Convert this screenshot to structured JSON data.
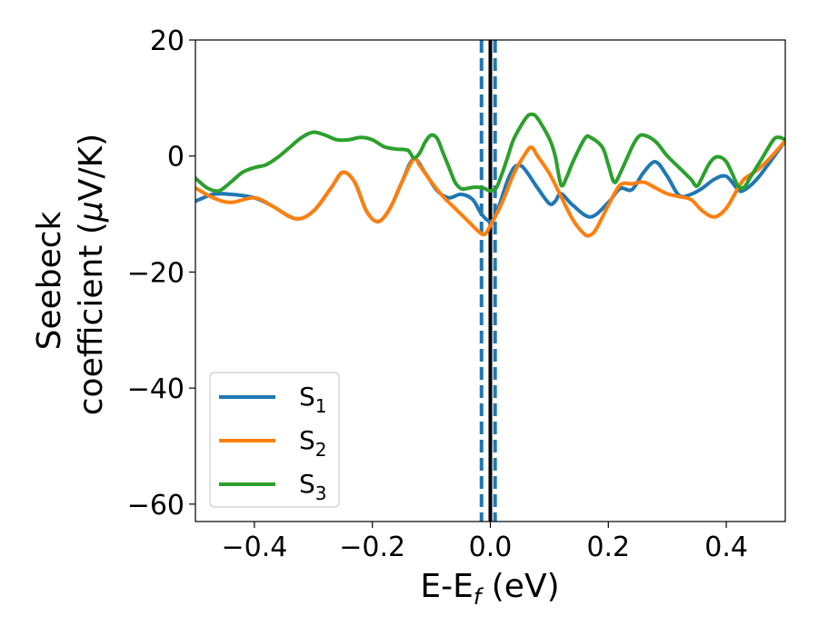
{
  "chart_data": {
    "type": "line",
    "title": "",
    "xlabel": "E-E",
    "xlabel_sub": "f",
    "xlabel_unit": " (eV)",
    "ylabel_line1": "Seebeck",
    "ylabel_line2": "coefficient  (",
    "ylabel_mu": "μ",
    "ylabel_unit": "V/K)",
    "xlim": [
      -0.5,
      0.5
    ],
    "ylim": [
      -63,
      20
    ],
    "xticks": [
      -0.4,
      -0.2,
      0.0,
      0.2,
      0.4
    ],
    "xtick_labels": [
      "−0.4",
      "−0.2",
      "0.0",
      "0.2",
      "0.4"
    ],
    "yticks": [
      20,
      0,
      -20,
      -40,
      -60
    ],
    "ytick_labels": [
      "20",
      "0",
      "−20",
      "−40",
      "−60"
    ],
    "legend_position": "lower-left",
    "vlines": [
      {
        "x": -0.015,
        "style": "dashed",
        "color": "#1f77b4"
      },
      {
        "x": 0.008,
        "style": "dashed",
        "color": "#1f77b4"
      },
      {
        "x": 0.0,
        "style": "solid",
        "color": "#000000"
      }
    ],
    "series": [
      {
        "name": "S",
        "sub": "1",
        "color": "#1f77b4",
        "points": [
          [
            -0.5,
            -7.8
          ],
          [
            -0.47,
            -6.6
          ],
          [
            -0.44,
            -6.6
          ],
          [
            -0.4,
            -7.2
          ],
          [
            -0.37,
            -8.6
          ],
          [
            -0.33,
            -10.8
          ],
          [
            -0.3,
            -9.5
          ],
          [
            -0.27,
            -5.5
          ],
          [
            -0.25,
            -2.8
          ],
          [
            -0.23,
            -4.5
          ],
          [
            -0.21,
            -9.5
          ],
          [
            -0.19,
            -11.3
          ],
          [
            -0.17,
            -9
          ],
          [
            -0.15,
            -4.5
          ],
          [
            -0.13,
            -0.5
          ],
          [
            -0.11,
            -3
          ],
          [
            -0.09,
            -6
          ],
          [
            -0.07,
            -7.2
          ],
          [
            -0.05,
            -6.6
          ],
          [
            -0.03,
            -7.5
          ],
          [
            -0.015,
            -10
          ],
          [
            0.0,
            -11.3
          ],
          [
            0.01,
            -10
          ],
          [
            0.02,
            -7
          ],
          [
            0.03,
            -4
          ],
          [
            0.04,
            -2
          ],
          [
            0.05,
            -1.6
          ],
          [
            0.06,
            -2.5
          ],
          [
            0.08,
            -5.5
          ],
          [
            0.1,
            -8.2
          ],
          [
            0.11,
            -7.8
          ],
          [
            0.12,
            -6.5
          ],
          [
            0.14,
            -8.5
          ],
          [
            0.17,
            -10.5
          ],
          [
            0.2,
            -8
          ],
          [
            0.22,
            -5.6
          ],
          [
            0.24,
            -5.8
          ],
          [
            0.26,
            -2.8
          ],
          [
            0.28,
            -1
          ],
          [
            0.3,
            -3.5
          ],
          [
            0.32,
            -6.8
          ],
          [
            0.34,
            -6.6
          ],
          [
            0.36,
            -5.5
          ],
          [
            0.38,
            -4
          ],
          [
            0.4,
            -3.5
          ],
          [
            0.42,
            -5.8
          ],
          [
            0.43,
            -5.9
          ],
          [
            0.45,
            -4.2
          ],
          [
            0.47,
            -1.6
          ],
          [
            0.5,
            2.6
          ]
        ]
      },
      {
        "name": "S",
        "sub": "2",
        "color": "#ff7f0e",
        "points": [
          [
            -0.5,
            -5.5
          ],
          [
            -0.47,
            -7.2
          ],
          [
            -0.44,
            -8
          ],
          [
            -0.4,
            -7.2
          ],
          [
            -0.37,
            -8.6
          ],
          [
            -0.33,
            -10.8
          ],
          [
            -0.3,
            -9.5
          ],
          [
            -0.27,
            -5.5
          ],
          [
            -0.25,
            -2.8
          ],
          [
            -0.23,
            -4.5
          ],
          [
            -0.21,
            -9.5
          ],
          [
            -0.19,
            -11.3
          ],
          [
            -0.17,
            -9
          ],
          [
            -0.15,
            -4.5
          ],
          [
            -0.13,
            -0.5
          ],
          [
            -0.12,
            -1.6
          ],
          [
            -0.1,
            -4.5
          ],
          [
            -0.08,
            -7
          ],
          [
            -0.06,
            -9
          ],
          [
            -0.04,
            -11
          ],
          [
            -0.02,
            -13
          ],
          [
            -0.01,
            -13.5
          ],
          [
            0.0,
            -12
          ],
          [
            0.02,
            -8
          ],
          [
            0.04,
            -3
          ],
          [
            0.06,
            0.5
          ],
          [
            0.07,
            1.5
          ],
          [
            0.08,
            0
          ],
          [
            0.1,
            -3
          ],
          [
            0.12,
            -7
          ],
          [
            0.14,
            -11
          ],
          [
            0.16,
            -13.5
          ],
          [
            0.17,
            -13.6
          ],
          [
            0.18,
            -12.5
          ],
          [
            0.2,
            -8.5
          ],
          [
            0.22,
            -5
          ],
          [
            0.24,
            -4.8
          ],
          [
            0.26,
            -4.5
          ],
          [
            0.28,
            -5.5
          ],
          [
            0.3,
            -6.5
          ],
          [
            0.32,
            -7
          ],
          [
            0.34,
            -7.5
          ],
          [
            0.36,
            -9.5
          ],
          [
            0.38,
            -10.5
          ],
          [
            0.4,
            -9
          ],
          [
            0.42,
            -5.5
          ],
          [
            0.43,
            -4
          ],
          [
            0.45,
            -2.6
          ],
          [
            0.47,
            -0.8
          ],
          [
            0.5,
            2.6
          ]
        ]
      },
      {
        "name": "S",
        "sub": "3",
        "color": "#2ca02c",
        "points": [
          [
            -0.5,
            -3.8
          ],
          [
            -0.48,
            -5.5
          ],
          [
            -0.46,
            -6
          ],
          [
            -0.44,
            -4.5
          ],
          [
            -0.42,
            -2.8
          ],
          [
            -0.4,
            -2
          ],
          [
            -0.38,
            -1.5
          ],
          [
            -0.36,
            -0.2
          ],
          [
            -0.34,
            1.5
          ],
          [
            -0.32,
            3.2
          ],
          [
            -0.3,
            4.1
          ],
          [
            -0.28,
            3.6
          ],
          [
            -0.26,
            2.8
          ],
          [
            -0.24,
            2.8
          ],
          [
            -0.22,
            3.2
          ],
          [
            -0.2,
            2.8
          ],
          [
            -0.18,
            1.6
          ],
          [
            -0.16,
            1.2
          ],
          [
            -0.14,
            1
          ],
          [
            -0.13,
            -0.3
          ],
          [
            -0.12,
            0.5
          ],
          [
            -0.11,
            2.5
          ],
          [
            -0.1,
            3.6
          ],
          [
            -0.09,
            3
          ],
          [
            -0.08,
            0.5
          ],
          [
            -0.07,
            -2
          ],
          [
            -0.06,
            -4.5
          ],
          [
            -0.05,
            -5.6
          ],
          [
            -0.04,
            -5.6
          ],
          [
            -0.03,
            -5.4
          ],
          [
            -0.02,
            -5.4
          ],
          [
            -0.01,
            -5.6
          ],
          [
            0.0,
            -6
          ],
          [
            0.01,
            -5.5
          ],
          [
            0.02,
            -3
          ],
          [
            0.03,
            0
          ],
          [
            0.04,
            3
          ],
          [
            0.06,
            6.5
          ],
          [
            0.07,
            7.2
          ],
          [
            0.08,
            6.5
          ],
          [
            0.1,
            3
          ],
          [
            0.11,
            0
          ],
          [
            0.12,
            -5
          ],
          [
            0.13,
            -3.5
          ],
          [
            0.14,
            -1
          ],
          [
            0.16,
            3
          ],
          [
            0.17,
            3.2
          ],
          [
            0.19,
            1.5
          ],
          [
            0.2,
            -1.5
          ],
          [
            0.21,
            -4.5
          ],
          [
            0.22,
            -3
          ],
          [
            0.24,
            1.5
          ],
          [
            0.25,
            3.2
          ],
          [
            0.26,
            3.6
          ],
          [
            0.28,
            2.5
          ],
          [
            0.3,
            0
          ],
          [
            0.32,
            -2
          ],
          [
            0.34,
            -4
          ],
          [
            0.35,
            -5.2
          ],
          [
            0.36,
            -3.5
          ],
          [
            0.37,
            -1.5
          ],
          [
            0.38,
            -0.3
          ],
          [
            0.39,
            -0.2
          ],
          [
            0.4,
            -1
          ],
          [
            0.41,
            -3
          ],
          [
            0.42,
            -5.2
          ],
          [
            0.43,
            -5.4
          ],
          [
            0.44,
            -3.8
          ],
          [
            0.46,
            -0.5
          ],
          [
            0.48,
            2.8
          ],
          [
            0.49,
            3.2
          ],
          [
            0.5,
            2.8
          ]
        ]
      }
    ]
  }
}
